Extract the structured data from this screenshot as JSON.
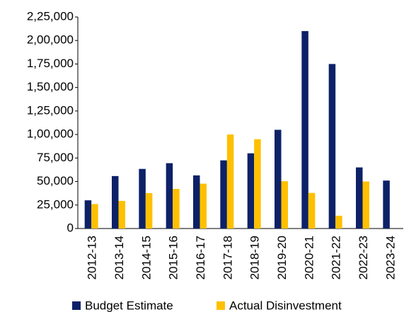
{
  "chart_data": {
    "type": "bar",
    "categories": [
      "2012-13",
      "2013-14",
      "2014-15",
      "2015-16",
      "2016-17",
      "2017-18",
      "2018-19",
      "2019-20",
      "2020-21",
      "2021-22",
      "2022-23",
      "2023-24"
    ],
    "series": [
      {
        "name": "Budget Estimate",
        "color": "#0d2167",
        "values": [
          30000,
          55800,
          63400,
          69500,
          56500,
          72500,
          80000,
          105000,
          210000,
          175000,
          65000,
          51000
        ]
      },
      {
        "name": "Actual Disinvestment",
        "color": "#ffc000",
        "values": [
          26000,
          29400,
          37700,
          42100,
          47700,
          100000,
          95000,
          50300,
          37900,
          13600,
          50000,
          null
        ]
      }
    ],
    "ylim": [
      0,
      225000
    ],
    "yticks": [
      0,
      {
        "value": 25000,
        "label": "25,000"
      },
      {
        "value": 50000,
        "label": "50,000"
      },
      {
        "value": 75000,
        "label": "75,000"
      },
      {
        "value": 100000,
        "label": "1,00,000"
      },
      {
        "value": 125000,
        "label": "1,25,000"
      },
      {
        "value": 150000,
        "label": "1,50,000"
      },
      {
        "value": 175000,
        "label": "1,75,000"
      },
      {
        "value": 200000,
        "label": "2,00,000"
      },
      {
        "value": 225000,
        "label": "2,25,000"
      }
    ],
    "grid": false,
    "legend": "bottom"
  }
}
